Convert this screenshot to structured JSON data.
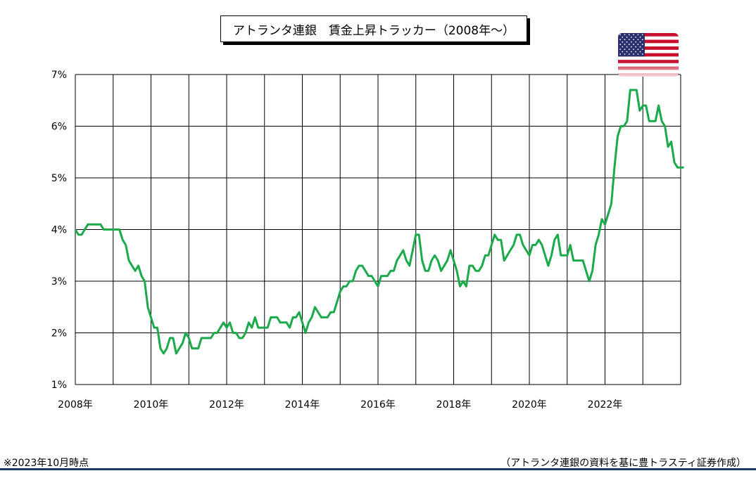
{
  "title": "アトランタ連銀　賃金上昇トラッカー（2008年～）",
  "note_left": "※2023年10月時点",
  "note_right": "（アトランタ連銀の資料を基に豊トラスティ証券作成）",
  "flag_icon": "us-flag-icon",
  "colors": {
    "line": "#1aaa4a",
    "grid": "#000000",
    "rule": "#1f3864"
  },
  "chart_data": {
    "type": "line",
    "title": "アトランタ連銀　賃金上昇トラッカー（2008年～）",
    "xlabel": "",
    "ylabel": "",
    "x_ticks": [
      "2008年",
      "2010年",
      "2012年",
      "2014年",
      "2016年",
      "2018年",
      "2020年",
      "2022年"
    ],
    "y_ticks": [
      "1%",
      "2%",
      "3%",
      "4%",
      "5%",
      "6%",
      "7%"
    ],
    "xlim": [
      2008.0,
      2024.0
    ],
    "ylim": [
      1,
      7
    ],
    "grid": true,
    "series": [
      {
        "x_start": "2008-01",
        "frequency": "monthly",
        "values": [
          4.0,
          3.9,
          3.9,
          4.0,
          4.1,
          4.1,
          4.1,
          4.1,
          4.1,
          4.0,
          4.0,
          4.0,
          4.0,
          4.0,
          4.0,
          3.8,
          3.7,
          3.4,
          3.3,
          3.2,
          3.3,
          3.1,
          3.0,
          2.5,
          2.3,
          2.1,
          2.1,
          1.7,
          1.6,
          1.7,
          1.9,
          1.9,
          1.6,
          1.7,
          1.8,
          2.0,
          1.9,
          1.7,
          1.7,
          1.7,
          1.9,
          1.9,
          1.9,
          1.9,
          2.0,
          2.0,
          2.1,
          2.2,
          2.1,
          2.2,
          2.0,
          2.0,
          1.9,
          1.9,
          2.0,
          2.2,
          2.1,
          2.3,
          2.1,
          2.1,
          2.1,
          2.1,
          2.3,
          2.3,
          2.3,
          2.2,
          2.2,
          2.2,
          2.1,
          2.3,
          2.3,
          2.4,
          2.2,
          2.0,
          2.2,
          2.3,
          2.5,
          2.4,
          2.3,
          2.3,
          2.3,
          2.4,
          2.4,
          2.6,
          2.8,
          2.9,
          2.9,
          3.0,
          3.0,
          3.2,
          3.3,
          3.3,
          3.2,
          3.1,
          3.1,
          3.0,
          2.9,
          3.1,
          3.1,
          3.1,
          3.2,
          3.2,
          3.4,
          3.5,
          3.6,
          3.4,
          3.3,
          3.6,
          3.9,
          3.9,
          3.4,
          3.2,
          3.2,
          3.4,
          3.5,
          3.4,
          3.2,
          3.3,
          3.4,
          3.6,
          3.4,
          3.2,
          2.9,
          3.0,
          2.9,
          3.3,
          3.3,
          3.2,
          3.2,
          3.3,
          3.5,
          3.5,
          3.7,
          3.9,
          3.8,
          3.8,
          3.4,
          3.5,
          3.6,
          3.7,
          3.9,
          3.9,
          3.7,
          3.6,
          3.5,
          3.7,
          3.7,
          3.8,
          3.7,
          3.5,
          3.3,
          3.5,
          3.8,
          3.9,
          3.5,
          3.5,
          3.5,
          3.7,
          3.4,
          3.4,
          3.4,
          3.4,
          3.2,
          3.0,
          3.2,
          3.7,
          3.9,
          4.2,
          4.1,
          4.3,
          4.5,
          5.2,
          5.8,
          6.0,
          6.0,
          6.1,
          6.7,
          6.7,
          6.7,
          6.3,
          6.4,
          6.4,
          6.1,
          6.1,
          6.1,
          6.4,
          6.1,
          6.0,
          5.6,
          5.7,
          5.3,
          5.2,
          5.2,
          5.2
        ]
      }
    ]
  }
}
